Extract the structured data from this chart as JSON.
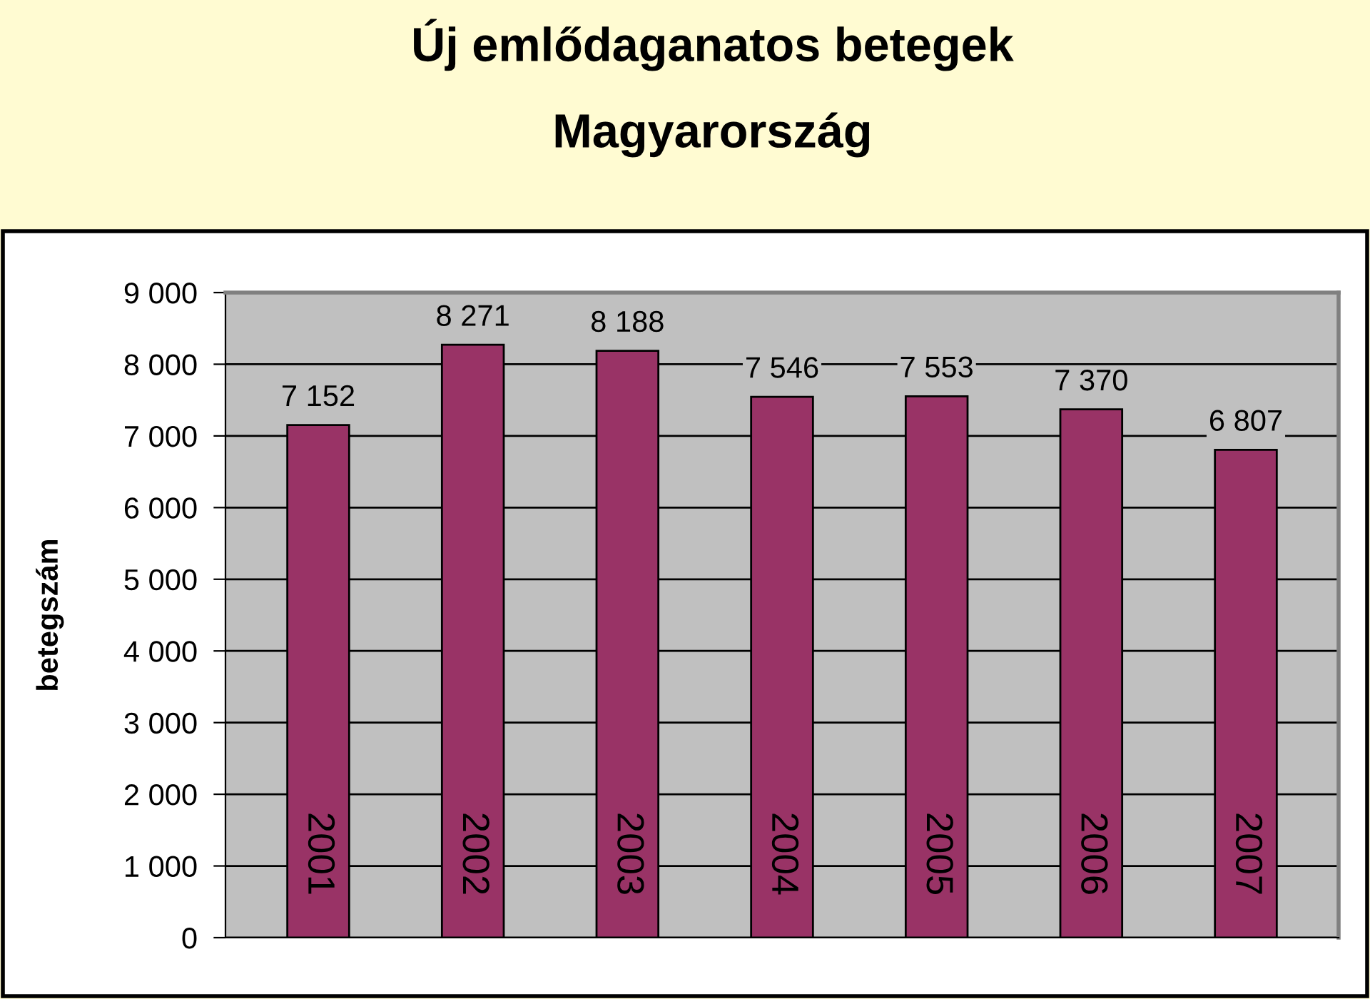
{
  "chart_data": {
    "type": "bar",
    "title": "Új emlődaganatos betegek",
    "subtitle": "Magyarország",
    "ylabel": "betegszám",
    "categories": [
      "2001",
      "2002",
      "2003",
      "2004",
      "2005",
      "2006",
      "2007"
    ],
    "values": [
      7152,
      8271,
      8188,
      7546,
      7553,
      7370,
      6807
    ],
    "value_labels": [
      "7 152",
      "8 271",
      "8 188",
      "7 546",
      "7 553",
      "7 370",
      "6 807"
    ],
    "color": "#993366",
    "ylim": [
      0,
      9000
    ],
    "yticks": [
      {
        "value": 0,
        "label": "0"
      },
      {
        "value": 1000,
        "label": "1 000"
      },
      {
        "value": 2000,
        "label": "2 000"
      },
      {
        "value": 3000,
        "label": "3 000"
      },
      {
        "value": 4000,
        "label": "4 000"
      },
      {
        "value": 5000,
        "label": "5 000"
      },
      {
        "value": 6000,
        "label": "6 000"
      },
      {
        "value": 7000,
        "label": "7 000"
      },
      {
        "value": 8000,
        "label": "8 000"
      },
      {
        "value": 9000,
        "label": "9 000"
      }
    ],
    "grid": "y",
    "legend": false
  }
}
